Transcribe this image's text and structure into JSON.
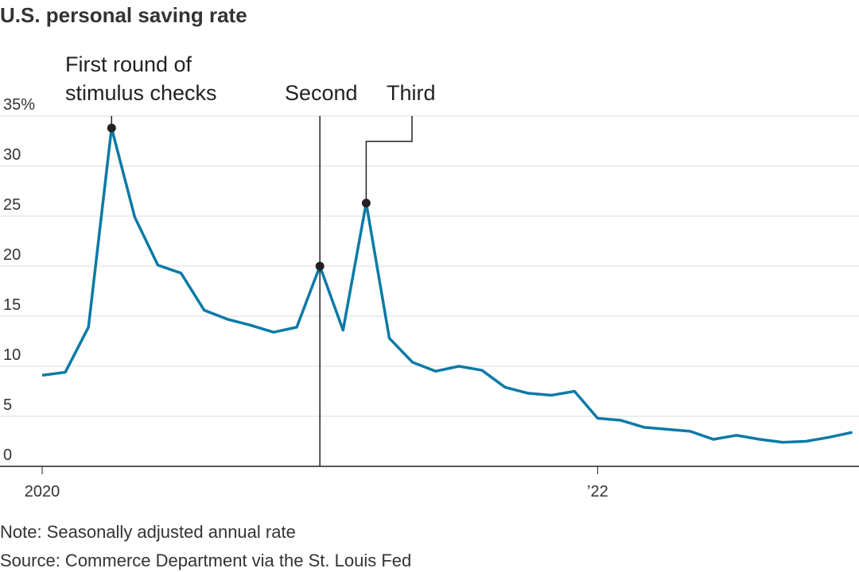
{
  "chart_data": {
    "type": "line",
    "title": "U.S. personal saving rate",
    "categories": [
      "2020",
      null,
      null,
      null,
      null,
      null,
      null,
      null,
      null,
      null,
      null,
      null,
      null,
      null,
      null,
      null,
      null,
      null,
      null,
      null,
      null,
      null,
      null,
      null,
      "’22",
      null,
      null,
      null,
      null,
      null,
      null,
      null,
      null,
      null,
      null,
      null
    ],
    "values": [
      9.1,
      9.4,
      13.9,
      33.8,
      24.9,
      20.1,
      19.3,
      15.6,
      14.7,
      14.1,
      13.4,
      13.9,
      20.0,
      13.6,
      26.3,
      12.8,
      10.4,
      9.5,
      10.0,
      9.6,
      7.9,
      7.3,
      7.1,
      7.5,
      4.8,
      4.6,
      3.9,
      3.7,
      3.5,
      2.7,
      3.1,
      2.7,
      2.4,
      2.5,
      2.9,
      3.4
    ],
    "color": "#0b7aa6",
    "ylim": [
      0,
      35
    ],
    "yticks": [
      0,
      5,
      10,
      15,
      20,
      25,
      30,
      {
        "value": 35,
        "label": "35%"
      }
    ],
    "grid": true,
    "annotations": [
      {
        "lines": [
          "First round of",
          "stimulus checks"
        ]
      },
      {
        "lines": [
          "Second"
        ]
      },
      {
        "lines": [
          "Third"
        ]
      }
    ],
    "note": "Note: Seasonally adjusted annual rate",
    "source": "Source: Commerce Department via the St. Louis Fed"
  }
}
